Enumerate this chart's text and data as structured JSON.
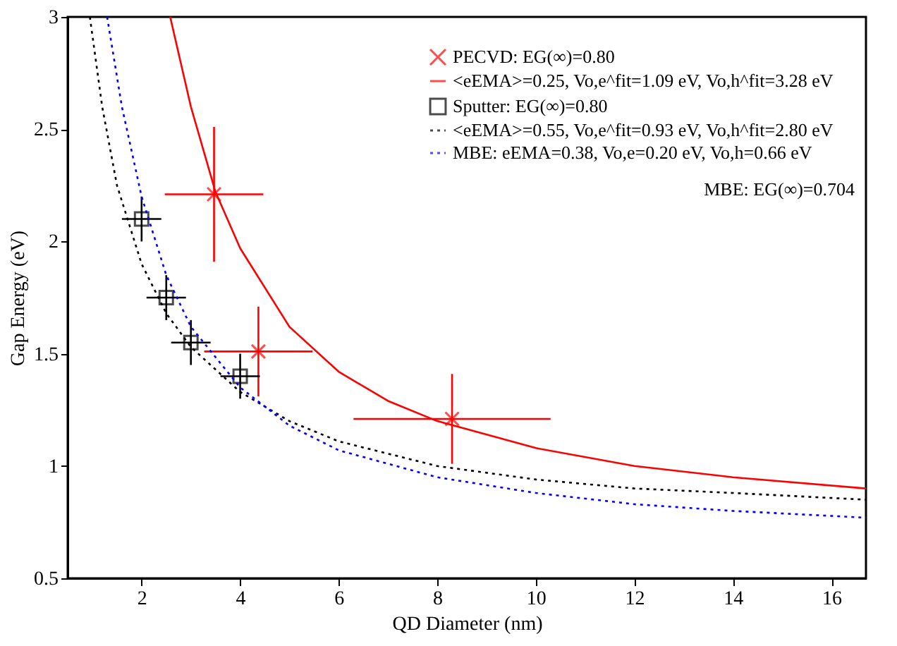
{
  "chart_data": {
    "type": "line",
    "xlabel": "QD Diameter (nm)",
    "ylabel": "Gap Energy (eV)",
    "xlim": [
      0.5,
      16.7
    ],
    "ylim": [
      0.5,
      3
    ],
    "xticks": [
      2,
      4,
      6,
      8,
      10,
      12,
      14,
      16
    ],
    "yticks": [
      0.5,
      1,
      1.5,
      2,
      2.5,
      3
    ],
    "grid": false,
    "legend": "top right",
    "series": [
      {
        "type": "scatter",
        "name": "PECVD: EG(∞)=0.80",
        "color": "#ff0000",
        "marker": "cross",
        "x": [
          3.47,
          4.37,
          8.3
        ],
        "values": [
          2.21,
          1.51,
          1.21
        ],
        "errors": [
          0.3,
          0.2,
          0.2
        ],
        "xerrors": [
          1.0,
          1.1,
          2.0
        ]
      },
      {
        "type": "line",
        "name": "<eEMA>=0.25, Vo,e^fit=1.09 eV, Vo,h^fit=3.28 eV",
        "color": "#ff0000",
        "line_style": "solid",
        "x": [
          2.58,
          3,
          3.5,
          4,
          5,
          6,
          7,
          8,
          10,
          12,
          14,
          16.7
        ],
        "values": [
          3,
          2.6,
          2.22,
          1.97,
          1.62,
          1.42,
          1.29,
          1.2,
          1.08,
          1.0,
          0.95,
          0.9
        ]
      },
      {
        "type": "scatter",
        "name": "Sputter: EG(∞)=0.80",
        "color": "#000000",
        "marker": "square",
        "x": [
          2,
          2.5,
          3,
          4
        ],
        "values": [
          2.1,
          1.75,
          1.55,
          1.4
        ],
        "errors": [
          0.1,
          0.1,
          0.1,
          0.1
        ],
        "xerrors": [
          0.4,
          0.4,
          0.4,
          0.4
        ]
      },
      {
        "type": "line",
        "name": "<eEMA>=0.55, Vo,e^fit=0.93 eV, Vo,h^fit=2.80 eV",
        "color": "#000000",
        "line_style": "dotted",
        "x": [
          0.95,
          1.2,
          1.5,
          2,
          2.5,
          3,
          4,
          5,
          6,
          8,
          10,
          12,
          14,
          16.7
        ],
        "values": [
          3,
          2.6,
          2.25,
          1.9,
          1.68,
          1.53,
          1.33,
          1.2,
          1.11,
          1.0,
          0.94,
          0.9,
          0.88,
          0.85
        ]
      },
      {
        "type": "line",
        "name": "MBE: eEMA=0.38, Vo,e=0.20 eV, Vo,h=0.66 eV",
        "color": "#0000ff",
        "line_style": "dotted",
        "x": [
          1.3,
          1.6,
          2,
          2.5,
          3,
          4,
          5,
          6,
          8,
          10,
          12,
          14,
          16.7
        ],
        "values": [
          3,
          2.6,
          2.2,
          1.85,
          1.62,
          1.35,
          1.18,
          1.07,
          0.95,
          0.88,
          0.83,
          0.8,
          0.77
        ]
      }
    ],
    "annotations": [
      "MBE: EG(∞)=0.704"
    ]
  }
}
